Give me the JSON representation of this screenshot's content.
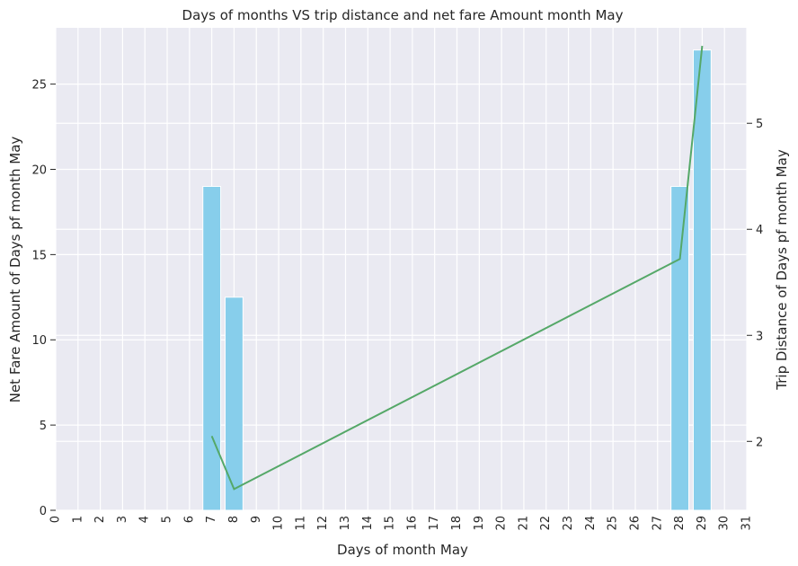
{
  "chart_data": {
    "type": "bar",
    "title": "Days of months VS trip distance and net fare Amount month May",
    "xlabel": "Days of month May",
    "ylabel": "Net Fare Amount of Days pf month May",
    "y2label": "Trip Distance of Days pf month May",
    "x_ticks": [
      "0",
      "1",
      "2",
      "3",
      "4",
      "5",
      "6",
      "7",
      "8",
      "9",
      "10",
      "11",
      "12",
      "13",
      "14",
      "15",
      "16",
      "17",
      "18",
      "19",
      "20",
      "21",
      "22",
      "23",
      "24",
      "25",
      "26",
      "27",
      "28",
      "29",
      "30",
      "31"
    ],
    "y_ticks": [
      "0",
      "5",
      "10",
      "15",
      "20",
      "25"
    ],
    "y2_ticks": [
      "2",
      "3",
      "4",
      "5"
    ],
    "ylim": [
      0,
      28.3
    ],
    "y2lim": [
      1.35,
      5.9
    ],
    "grid": true,
    "bar_color": "#87ceeb",
    "line_color": "#55a868",
    "bars": [
      {
        "x": 7,
        "value": 19
      },
      {
        "x": 8,
        "value": 12.5
      },
      {
        "x": 28,
        "value": 19
      },
      {
        "x": 29,
        "value": 27
      }
    ],
    "line": [
      {
        "x": 7,
        "value": 2.05
      },
      {
        "x": 8,
        "value": 1.55
      },
      {
        "x": 28,
        "value": 3.72
      },
      {
        "x": 29,
        "value": 5.73
      }
    ]
  }
}
